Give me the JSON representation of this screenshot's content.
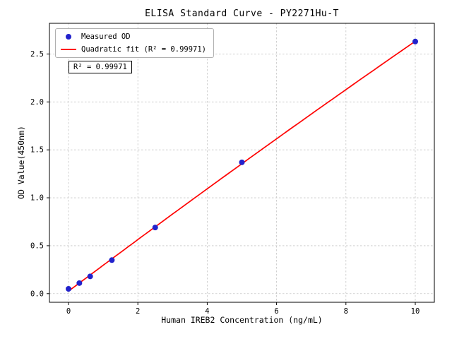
{
  "chart_data": {
    "type": "scatter",
    "title": "ELISA Standard Curve - PY2271Hu-T",
    "xlabel": "Human IREB2 Concentration (ng/mL)",
    "ylabel": "OD Value(450nm)",
    "xlim": [
      -0.55,
      10.55
    ],
    "ylim": [
      -0.09,
      2.82
    ],
    "xticks": [
      0,
      2,
      4,
      6,
      8,
      10
    ],
    "yticks": [
      0,
      0.5,
      1,
      1.5,
      2,
      2.5
    ],
    "grid": true,
    "legend_position": "upper-left",
    "annotation": "R² = 0.99971",
    "r_squared": 0.99971,
    "fit_type": "quadratic",
    "series": [
      {
        "name": "Measured OD",
        "type": "scatter",
        "color": "#2222cc",
        "x": [
          0,
          0.3125,
          0.625,
          1.25,
          2.5,
          5,
          10
        ],
        "y": [
          0.05,
          0.11,
          0.18,
          0.35,
          0.69,
          1.37,
          2.63
        ]
      },
      {
        "name": "Quadratic fit (R² = 0.99971)",
        "type": "line",
        "color": "#ff0000",
        "fit": "quadratic",
        "r_squared": 0.99971
      }
    ]
  }
}
